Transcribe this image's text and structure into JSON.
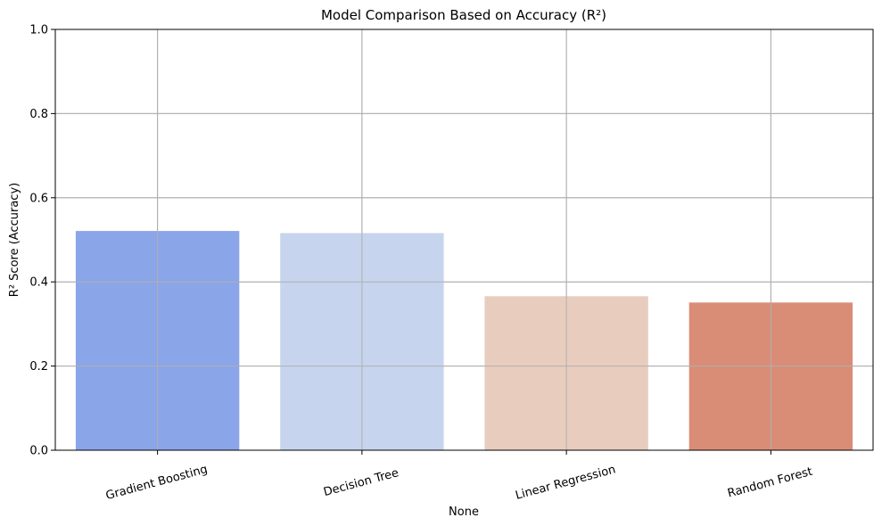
{
  "chart_data": {
    "type": "bar",
    "title": "Model Comparison Based on Accuracy (R²)",
    "xlabel": "None",
    "ylabel": "R² Score (Accuracy)",
    "categories": [
      "Gradient Boosting",
      "Decision Tree",
      "Linear Regression",
      "Random Forest"
    ],
    "values": [
      0.521,
      0.516,
      0.366,
      0.351
    ],
    "colors": [
      "#8aa5e8",
      "#c6d4ee",
      "#e8cdbf",
      "#d98d77"
    ],
    "ylim": [
      0,
      1
    ],
    "yticks": [
      "0.0",
      "0.2",
      "0.4",
      "0.6",
      "0.8",
      "1.0"
    ],
    "grid": true,
    "legend": "none"
  }
}
